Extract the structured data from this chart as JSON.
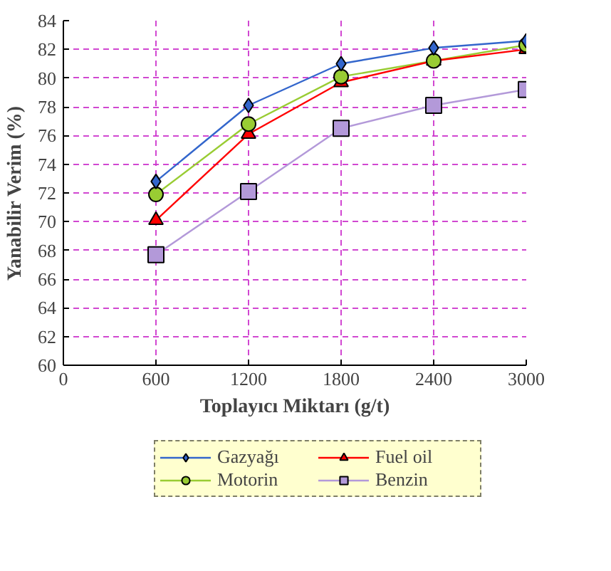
{
  "chart_data": {
    "type": "line",
    "xlabel": "Toplayıcı Miktarı (g/t)",
    "ylabel": "Yanabilir Verim (%)",
    "x": [
      600,
      1200,
      1800,
      2400,
      3000
    ],
    "series": [
      {
        "name": "Gazyağı",
        "color": "#3366cc",
        "marker": "diamond",
        "values": [
          72.8,
          78.1,
          81.0,
          82.1,
          82.6
        ]
      },
      {
        "name": "Motorin",
        "color": "#99cc33",
        "marker": "circle",
        "values": [
          71.9,
          76.8,
          80.1,
          81.2,
          82.3
        ]
      },
      {
        "name": "Fuel oil",
        "color": "#ff0000",
        "marker": "triangle",
        "values": [
          70.1,
          76.1,
          79.7,
          81.2,
          82.0
        ]
      },
      {
        "name": "Benzin",
        "color": "#b399d9",
        "marker": "square",
        "values": [
          67.7,
          72.1,
          76.5,
          78.1,
          79.2
        ]
      }
    ],
    "xlim": [
      0,
      3000
    ],
    "xticks": [
      0,
      600,
      1200,
      1800,
      2400,
      3000
    ],
    "ylim": [
      60,
      84
    ],
    "yticks": [
      60,
      62,
      64,
      66,
      68,
      70,
      72,
      74,
      76,
      78,
      80,
      82,
      84
    ],
    "grid": true,
    "legend": "bottom"
  }
}
